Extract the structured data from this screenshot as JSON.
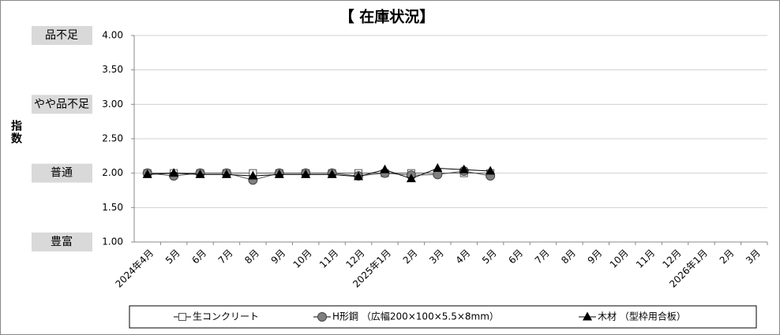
{
  "chart_data": {
    "type": "line",
    "title": "【 在庫状況】",
    "y_label": "指数",
    "categories": [
      "2024年4月",
      "5月",
      "6月",
      "7月",
      "8月",
      "9月",
      "10月",
      "11月",
      "12月",
      "2025年1月",
      "2月",
      "3月",
      "4月",
      "5月",
      "6月",
      "7月",
      "8月",
      "9月",
      "10月",
      "11月",
      "12月",
      "2026年1月",
      "2月",
      "3月"
    ],
    "series": [
      {
        "name": "生コンクリート",
        "color": "#808080",
        "marker": "square",
        "values": [
          2.0,
          2.0,
          2.0,
          2.0,
          2.0,
          2.0,
          2.0,
          2.0,
          2.0,
          2.0,
          2.0,
          2.0,
          2.0,
          2.0,
          null,
          null,
          null,
          null,
          null,
          null,
          null,
          null,
          null,
          null
        ]
      },
      {
        "name": "H形鋼 （広幅200×100×5.5×8mm）",
        "color": "#808080",
        "marker": "circle",
        "values": [
          2.0,
          1.96,
          2.0,
          2.0,
          1.9,
          2.0,
          2.0,
          2.0,
          1.96,
          2.0,
          1.97,
          1.98,
          2.03,
          1.96,
          null,
          null,
          null,
          null,
          null,
          null,
          null,
          null,
          null,
          null
        ]
      },
      {
        "name": "木材 （型枠用合板）",
        "color": "#000000",
        "marker": "triangle",
        "values": [
          1.98,
          2.0,
          1.98,
          1.98,
          1.96,
          1.98,
          1.98,
          1.98,
          1.95,
          2.05,
          1.92,
          2.07,
          2.05,
          2.03,
          null,
          null,
          null,
          null,
          null,
          null,
          null,
          null,
          null,
          null
        ]
      }
    ],
    "ylim": [
      1,
      4
    ],
    "yticks": [
      {
        "value": 1,
        "label": "1.00"
      },
      {
        "value": 1.5,
        "label": "1.50"
      },
      {
        "value": 2,
        "label": "2.00"
      },
      {
        "value": 2.5,
        "label": "2.50"
      },
      {
        "value": 3,
        "label": "3.00"
      },
      {
        "value": 3.5,
        "label": "3.50"
      },
      {
        "value": 4,
        "label": "4.00"
      }
    ],
    "y_level_labels": [
      {
        "value": 4,
        "label": "品不足"
      },
      {
        "value": 3,
        "label": "やや品不足"
      },
      {
        "value": 2,
        "label": "普通"
      },
      {
        "value": 1,
        "label": "豊富"
      }
    ],
    "grid": true,
    "legend": "bottom"
  }
}
